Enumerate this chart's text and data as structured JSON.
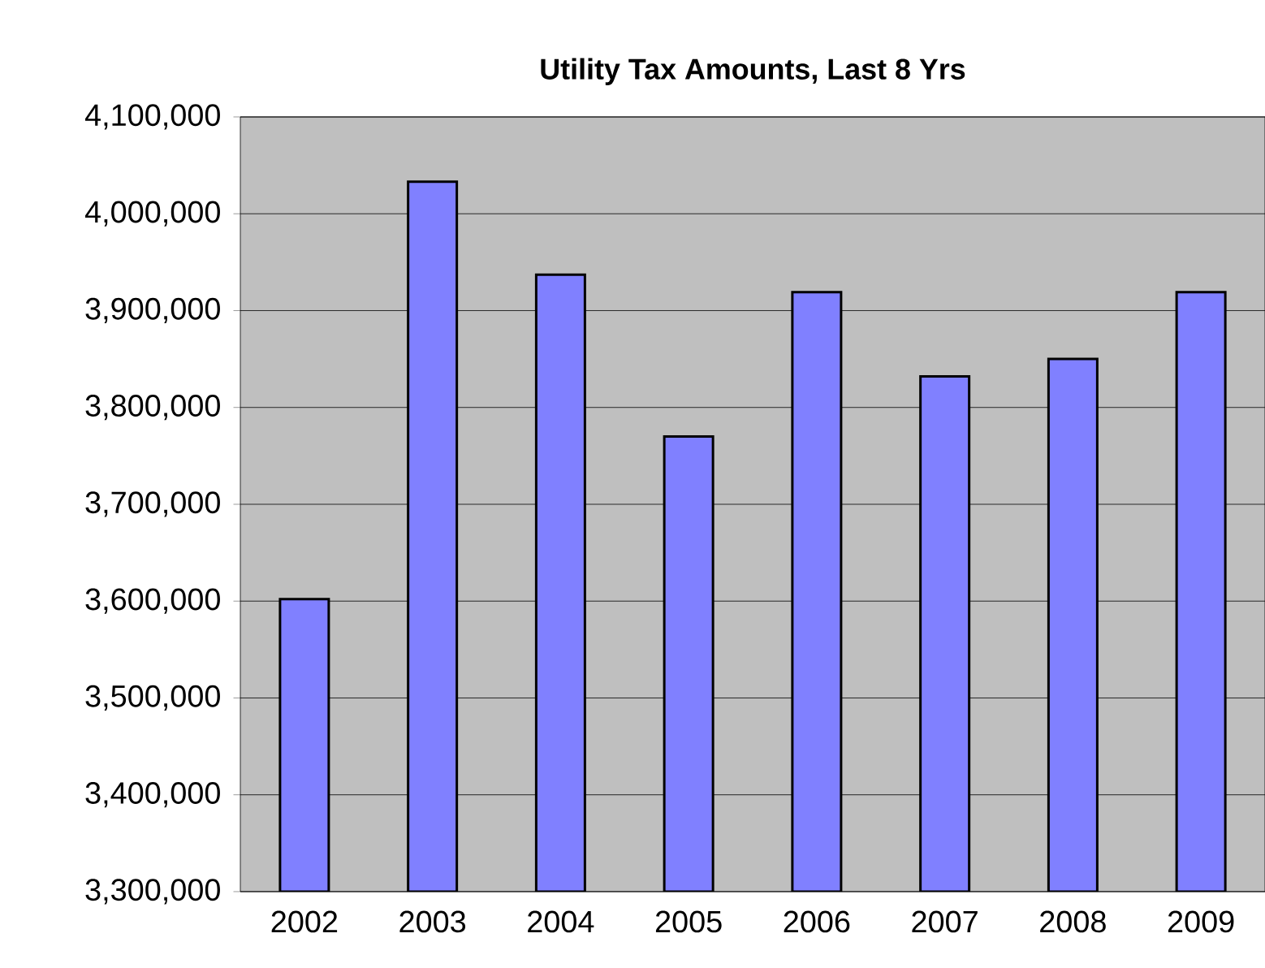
{
  "chart_data": {
    "type": "bar",
    "title": "Utility Tax Amounts, Last 8 Yrs",
    "categories": [
      "2002",
      "2003",
      "2004",
      "2005",
      "2006",
      "2007",
      "2008",
      "2009"
    ],
    "values": [
      3602000,
      4033000,
      3937000,
      3770000,
      3919000,
      3832000,
      3850000,
      3919000
    ],
    "color": "#8080ff",
    "ylim": [
      3300000,
      4100000
    ],
    "yticks": [
      {
        "value": 3300000,
        "label": "3,300,000"
      },
      {
        "value": 3400000,
        "label": "3,400,000"
      },
      {
        "value": 3500000,
        "label": "3,500,000"
      },
      {
        "value": 3600000,
        "label": "3,600,000"
      },
      {
        "value": 3700000,
        "label": "3,700,000"
      },
      {
        "value": 3800000,
        "label": "3,800,000"
      },
      {
        "value": 3900000,
        "label": "3,900,000"
      },
      {
        "value": 4000000,
        "label": "4,000,000"
      },
      {
        "value": 4100000,
        "label": "4,100,000"
      }
    ],
    "grid": "y"
  }
}
